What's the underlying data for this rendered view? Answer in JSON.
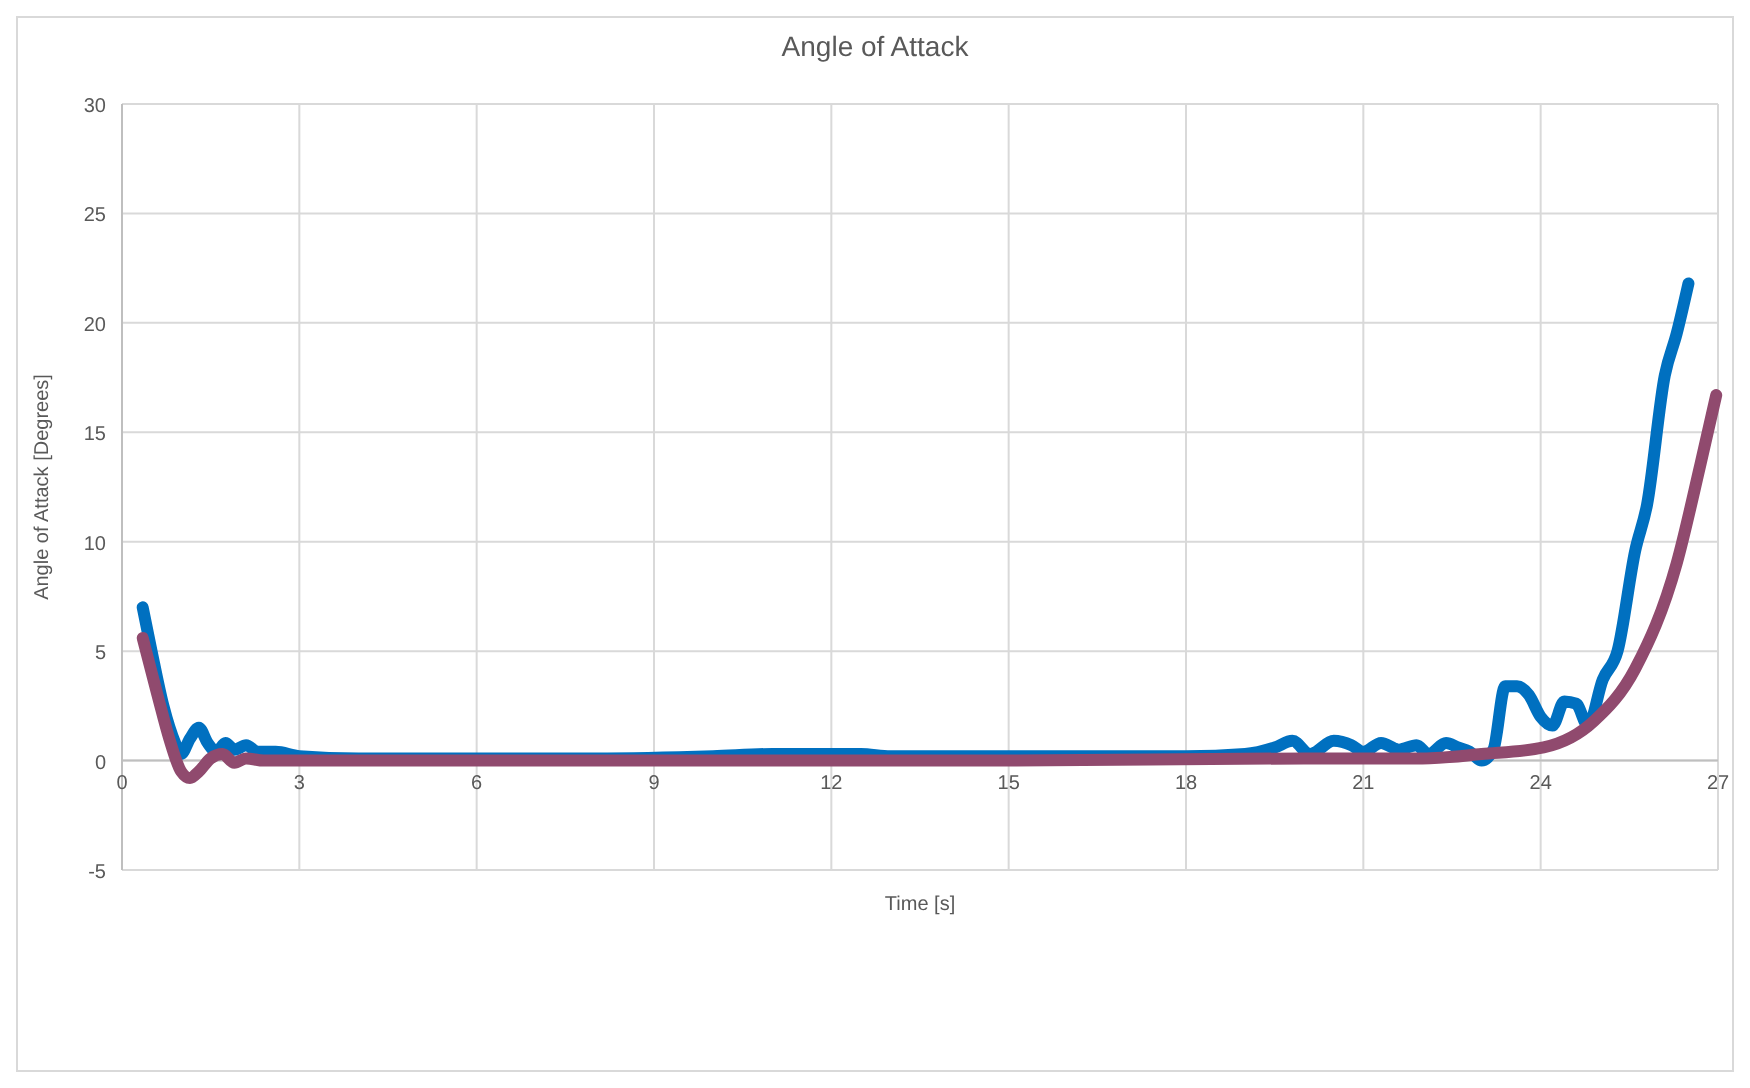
{
  "chart_data": {
    "type": "line",
    "title": "Angle of Attack",
    "xlabel": "Time [s]",
    "ylabel": "Angle of Attack [Degrees]",
    "xlim": [
      0,
      27
    ],
    "xticks": [
      0,
      3,
      6,
      9,
      12,
      15,
      18,
      21,
      24,
      27
    ],
    "ylim": [
      -5,
      30
    ],
    "yticks": [
      -5,
      0,
      5,
      10,
      15,
      20,
      25,
      30
    ],
    "grid": true,
    "marker": "none",
    "line_style": "solid",
    "series": [
      {
        "color": "#0070c0",
        "x": [
          0.35,
          0.5,
          0.7,
          0.9,
          1.0,
          1.15,
          1.3,
          1.45,
          1.6,
          1.75,
          1.9,
          2.1,
          2.3,
          2.6,
          3,
          4,
          6,
          8,
          10,
          11,
          12,
          12.5,
          13,
          14,
          15,
          16,
          17,
          18,
          19,
          19.5,
          19.8,
          20.1,
          20.5,
          20.8,
          21,
          21.3,
          21.6,
          21.9,
          22.1,
          22.4,
          22.6,
          22.8,
          23.0,
          23.2,
          23.4,
          23.6,
          23.8,
          24.0,
          24.2,
          24.4,
          24.6,
          24.8,
          25.05,
          25.3,
          25.6,
          25.8,
          26.1,
          26.3,
          26.5
        ],
        "values": [
          7,
          5,
          2.5,
          0.8,
          0.3,
          1.0,
          1.5,
          0.8,
          0.4,
          0.8,
          0.5,
          0.7,
          0.4,
          0.4,
          0.2,
          0.1,
          0.1,
          0.1,
          0.2,
          0.3,
          0.3,
          0.3,
          0.2,
          0.2,
          0.2,
          0.2,
          0.2,
          0.2,
          0.3,
          0.6,
          0.9,
          0.3,
          0.9,
          0.7,
          0.4,
          0.8,
          0.5,
          0.7,
          0.3,
          0.8,
          0.6,
          0.4,
          0,
          0.5,
          3.4,
          3.4,
          3.0,
          2.0,
          1.6,
          2.7,
          2.6,
          1.6,
          3.7,
          5,
          9.6,
          11.7,
          17.6,
          19.5,
          21.8
        ]
      },
      {
        "color": "#904a6e",
        "x": [
          0.35,
          0.6,
          0.8,
          1.0,
          1.15,
          1.3,
          1.5,
          1.7,
          1.9,
          2.1,
          2.4,
          3,
          6,
          10,
          15,
          20,
          22,
          23,
          24.05,
          24.9,
          25.6,
          26.3,
          26.7,
          26.97
        ],
        "values": [
          5.6,
          3,
          1,
          -0.5,
          -0.8,
          -0.5,
          0.1,
          0.3,
          -0.1,
          0.1,
          0,
          0,
          0,
          0,
          0,
          0.1,
          0.1,
          0.3,
          0.6,
          1.8,
          4.2,
          9.0,
          13.5,
          16.7
        ]
      }
    ]
  }
}
